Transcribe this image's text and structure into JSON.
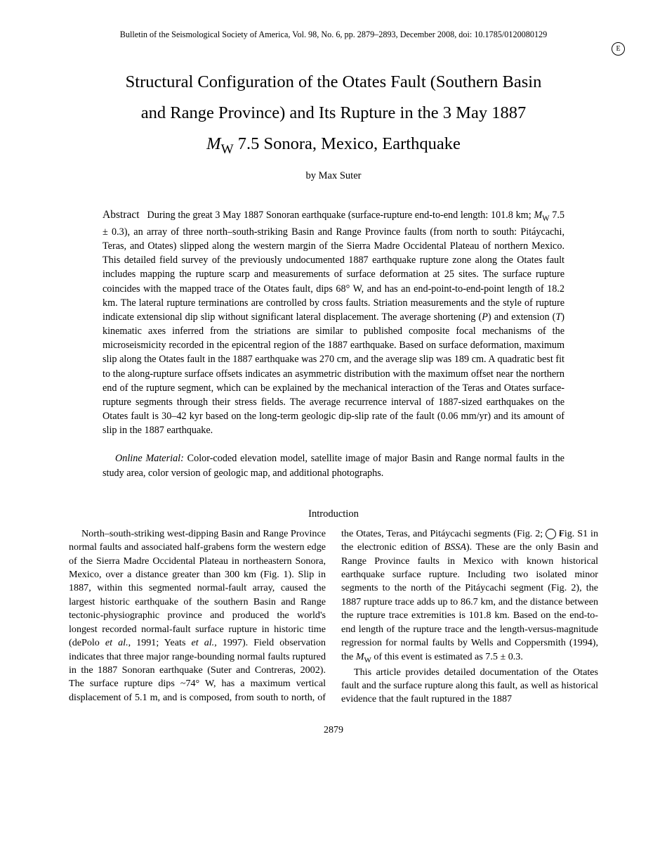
{
  "running_head": "Bulletin of the Seismological Society of America, Vol. 98, No. 6, pp. 2879–2893, December 2008, doi: 10.1785/0120080129",
  "badge_letter": "E",
  "title_line1": "Structural Configuration of the Otates Fault (Southern Basin",
  "title_line2": "and Range Province) and Its Rupture in the 3 May 1887",
  "title_mw_prefix": "M",
  "title_mw_sub": "W",
  "title_line3_rest": " 7.5 Sonora, Mexico, Earthquake",
  "byline": "by Max Suter",
  "abstract_label": "Abstract",
  "abstract_pre": "During the great 3 May 1887 Sonoran earthquake (surface-rupture end-to-end length: 101.8 km; ",
  "abstract_mw_prefix": "M",
  "abstract_mw_sub": "W",
  "abstract_post_mw": " 7.5 ± 0.3), an array of three north–south-striking Basin and Range Province faults (from north to south: Pitáycachi, Teras, and Otates) slipped along the western margin of the Sierra Madre Occidental Plateau of northern Mexico. This detailed field survey of the previously undocumented 1887 earthquake rupture zone along the Otates fault includes mapping the rupture scarp and measurements of surface deformation at 25 sites. The surface rupture coincides with the mapped trace of the Otates fault, dips 68° W, and has an end-point-to-end-point length of 18.2 km. The lateral rupture terminations are controlled by cross faults. Striation measurements and the style of rupture indicate extensional dip slip without significant lateral displacement. The average shortening (",
  "abstract_P": "P",
  "abstract_mid1": ") and extension (",
  "abstract_T": "T",
  "abstract_mid2": ") kinematic axes inferred from the striations are similar to published composite focal mechanisms of the microseismicity recorded in the epicentral region of the 1887 earthquake. Based on surface deformation, maximum slip along the Otates fault in the 1887 earthquake was 270 cm, and the average slip was 189 cm. A quadratic best fit to the along-rupture surface offsets indicates an asymmetric distribution with the maximum offset near the northern end of the rupture segment, which can be explained by the mechanical interaction of the Teras and Otates surface-rupture segments through their stress fields. The average recurrence interval of 1887-sized earthquakes on the Otates fault is 30–42 kyr based on the long-term geologic dip-slip rate of the fault (0.06 mm/yr) and its amount of slip in the 1887 earthquake.",
  "online_label": "Online Material:",
  "online_text": " Color-coded elevation model, satellite image of major Basin and Range normal faults in the study area, color version of geologic map, and additional photographs.",
  "intro_heading": "Introduction",
  "intro_p1_a": "North–south-striking west-dipping Basin and Range Province normal faults and associated half-grabens form the western edge of the Sierra Madre Occidental Plateau in northeastern Sonora, Mexico, over a distance greater than 300 km (Fig. 1). Slip in 1887, within this segmented normal-fault array, caused the largest historic earthquake of the southern Basin and Range tectonic-physiographic province and produced the world's longest recorded normal-fault surface rupture in historic time (dePolo ",
  "intro_p1_etal1": "et al.",
  "intro_p1_b": ", 1991; Yeats ",
  "intro_p1_etal2": "et al.",
  "intro_p1_c": ", 1997). Field observation indicates that three major range-bounding normal faults ruptured in the 1887 Sonoran earthquake (Suter and Contreras, 2002). The surface rupture dips ~74° W, has a maximum vertical displacement of 5.1 m, and is composed, from south to north, of the Otates, Teras, and Pitáycachi segments (Fig. 2; ",
  "intro_p1_badge": "E",
  "intro_p1_d": " Fig. S1 in the electronic edition of ",
  "intro_p1_bssa": "BSSA",
  "intro_p1_e": "). These are the only Basin and Range Province faults in Mexico with known historical earthquake surface rupture. Including two isolated minor segments to the north of the Pitáycachi segment (Fig. 2), the 1887 rupture trace adds up to 86.7 km, and the distance between the rupture trace extremities is 101.8 km. Based on the end-to-end length of the rupture trace and the length-versus-magnitude regression for normal faults by Wells and Coppersmith (1994), the ",
  "intro_p1_mw_prefix": "M",
  "intro_p1_mw_sub": "W",
  "intro_p1_f": " of this event is estimated as 7.5 ± 0.3.",
  "intro_p2": "This article provides detailed documentation of the Otates fault and the surface rupture along this fault, as well as historical evidence that the fault ruptured in the 1887",
  "page_number": "2879"
}
